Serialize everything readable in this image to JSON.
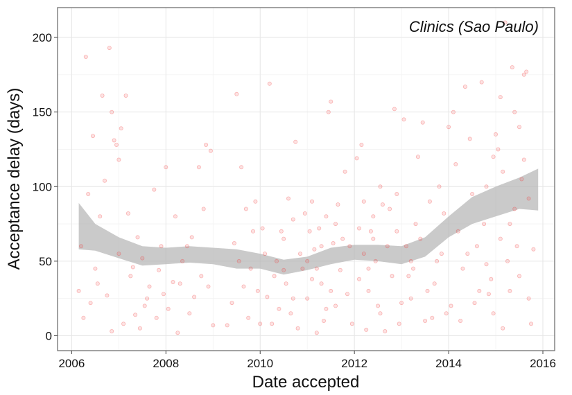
{
  "chart_data": {
    "type": "scatter",
    "title": "Clinics (Sao Paulo)",
    "xlabel": "Date accepted",
    "ylabel": "Acceptance delay (days)",
    "xlim": [
      2005.7,
      2016.25
    ],
    "ylim": [
      -10,
      220
    ],
    "x_ticks": [
      2006,
      2008,
      2010,
      2012,
      2014,
      2016
    ],
    "y_ticks": [
      0,
      50,
      100,
      150,
      200
    ],
    "x_tick_labels": [
      "2006",
      "2008",
      "2010",
      "2012",
      "2014",
      "2016"
    ],
    "y_tick_labels": [
      "0",
      "50",
      "100",
      "150",
      "200"
    ],
    "grid": true,
    "point_color": "#f03b3b",
    "band_color": "#b3b3b3",
    "points": [
      [
        2006.2,
        60
      ],
      [
        2006.3,
        187
      ],
      [
        2006.35,
        95
      ],
      [
        2006.45,
        134
      ],
      [
        2006.5,
        45
      ],
      [
        2006.6,
        80
      ],
      [
        2006.65,
        161
      ],
      [
        2006.7,
        104
      ],
      [
        2006.8,
        193
      ],
      [
        2006.85,
        150
      ],
      [
        2006.9,
        131
      ],
      [
        2006.95,
        128
      ],
      [
        2007.0,
        118
      ],
      [
        2007.05,
        139
      ],
      [
        2007.15,
        161
      ],
      [
        2007.2,
        82
      ],
      [
        2007.3,
        46
      ],
      [
        2007.4,
        66
      ],
      [
        2007.5,
        52
      ],
      [
        2007.6,
        25
      ],
      [
        2007.75,
        98
      ],
      [
        2007.9,
        60
      ],
      [
        2008.0,
        113
      ],
      [
        2008.2,
        80
      ],
      [
        2008.3,
        35
      ],
      [
        2008.45,
        60
      ],
      [
        2008.55,
        66
      ],
      [
        2008.7,
        113
      ],
      [
        2008.8,
        85
      ],
      [
        2008.85,
        128
      ],
      [
        2008.95,
        124
      ],
      [
        2006.15,
        30
      ],
      [
        2006.25,
        12
      ],
      [
        2006.4,
        22
      ],
      [
        2006.55,
        35
      ],
      [
        2006.75,
        27
      ],
      [
        2006.85,
        3
      ],
      [
        2007.0,
        55
      ],
      [
        2007.1,
        8
      ],
      [
        2007.25,
        40
      ],
      [
        2007.35,
        14
      ],
      [
        2007.45,
        5
      ],
      [
        2007.55,
        20
      ],
      [
        2007.65,
        33
      ],
      [
        2007.8,
        12
      ],
      [
        2007.85,
        44
      ],
      [
        2007.95,
        28
      ],
      [
        2008.05,
        18
      ],
      [
        2008.15,
        36
      ],
      [
        2008.25,
        2
      ],
      [
        2008.35,
        50
      ],
      [
        2008.5,
        15
      ],
      [
        2008.6,
        26
      ],
      [
        2008.75,
        40
      ],
      [
        2008.9,
        33
      ],
      [
        2009.0,
        7
      ],
      [
        2009.3,
        7
      ],
      [
        2009.4,
        22
      ],
      [
        2009.45,
        62
      ],
      [
        2009.5,
        162
      ],
      [
        2009.6,
        113
      ],
      [
        2009.7,
        85
      ],
      [
        2009.8,
        45
      ],
      [
        2009.9,
        90
      ],
      [
        2009.95,
        30
      ],
      [
        2010.05,
        72
      ],
      [
        2010.1,
        55
      ],
      [
        2010.2,
        169
      ],
      [
        2010.3,
        40
      ],
      [
        2010.4,
        18
      ],
      [
        2010.5,
        65
      ],
      [
        2010.6,
        92
      ],
      [
        2010.7,
        78
      ],
      [
        2010.75,
        130
      ],
      [
        2010.8,
        5
      ],
      [
        2010.9,
        45
      ],
      [
        2011.0,
        25
      ],
      [
        2011.05,
        70
      ],
      [
        2011.1,
        90
      ],
      [
        2011.15,
        58
      ],
      [
        2011.2,
        2
      ],
      [
        2011.25,
        72
      ],
      [
        2011.3,
        35
      ],
      [
        2011.35,
        10
      ],
      [
        2011.4,
        80
      ],
      [
        2011.45,
        150
      ],
      [
        2011.5,
        157
      ],
      [
        2011.55,
        62
      ],
      [
        2011.6,
        20
      ],
      [
        2011.65,
        88
      ],
      [
        2011.7,
        44
      ],
      [
        2011.8,
        110
      ],
      [
        2011.9,
        60
      ],
      [
        2011.95,
        8
      ],
      [
        2010.0,
        8
      ],
      [
        2010.15,
        26
      ],
      [
        2010.35,
        50
      ],
      [
        2010.45,
        70
      ],
      [
        2010.55,
        35
      ],
      [
        2010.65,
        15
      ],
      [
        2010.85,
        55
      ],
      [
        2010.95,
        82
      ],
      [
        2011.1,
        38
      ],
      [
        2011.3,
        60
      ],
      [
        2011.5,
        30
      ],
      [
        2011.75,
        65
      ],
      [
        2011.85,
        28
      ],
      [
        2009.55,
        50
      ],
      [
        2009.65,
        33
      ],
      [
        2009.75,
        12
      ],
      [
        2009.85,
        70
      ],
      [
        2010.25,
        8
      ],
      [
        2010.5,
        44
      ],
      [
        2010.7,
        25
      ],
      [
        2011.0,
        50
      ],
      [
        2011.2,
        45
      ],
      [
        2011.4,
        18
      ],
      [
        2011.6,
        75
      ],
      [
        2012.05,
        119
      ],
      [
        2012.15,
        128
      ],
      [
        2012.2,
        90
      ],
      [
        2012.25,
        4
      ],
      [
        2012.3,
        45
      ],
      [
        2012.35,
        70
      ],
      [
        2012.4,
        65
      ],
      [
        2012.5,
        20
      ],
      [
        2012.55,
        100
      ],
      [
        2012.6,
        88
      ],
      [
        2012.65,
        3
      ],
      [
        2012.75,
        85
      ],
      [
        2012.85,
        152
      ],
      [
        2012.95,
        8
      ],
      [
        2013.05,
        145
      ],
      [
        2013.1,
        60
      ],
      [
        2013.15,
        40
      ],
      [
        2013.2,
        25
      ],
      [
        2013.3,
        75
      ],
      [
        2013.35,
        120
      ],
      [
        2013.45,
        143
      ],
      [
        2013.5,
        10
      ],
      [
        2013.6,
        90
      ],
      [
        2013.7,
        35
      ],
      [
        2013.8,
        100
      ],
      [
        2013.85,
        55
      ],
      [
        2013.9,
        82
      ],
      [
        2013.95,
        15
      ],
      [
        2012.1,
        38
      ],
      [
        2012.2,
        55
      ],
      [
        2012.3,
        30
      ],
      [
        2012.45,
        50
      ],
      [
        2012.55,
        15
      ],
      [
        2012.7,
        60
      ],
      [
        2012.8,
        40
      ],
      [
        2012.9,
        70
      ],
      [
        2013.0,
        22
      ],
      [
        2013.25,
        45
      ],
      [
        2013.4,
        65
      ],
      [
        2013.55,
        30
      ],
      [
        2013.65,
        12
      ],
      [
        2013.75,
        50
      ],
      [
        2012.1,
        72
      ],
      [
        2012.4,
        80
      ],
      [
        2012.9,
        95
      ],
      [
        2013.2,
        50
      ],
      [
        2014.0,
        140
      ],
      [
        2014.1,
        150
      ],
      [
        2014.15,
        115
      ],
      [
        2014.2,
        70
      ],
      [
        2014.3,
        45
      ],
      [
        2014.35,
        167
      ],
      [
        2014.45,
        132
      ],
      [
        2014.5,
        95
      ],
      [
        2014.6,
        60
      ],
      [
        2014.65,
        30
      ],
      [
        2014.7,
        170
      ],
      [
        2014.75,
        75
      ],
      [
        2014.8,
        48
      ],
      [
        2014.85,
        28
      ],
      [
        2014.9,
        38
      ],
      [
        2014.95,
        120
      ],
      [
        2015.0,
        135
      ],
      [
        2015.05,
        125
      ],
      [
        2015.1,
        160
      ],
      [
        2015.15,
        110
      ],
      [
        2015.2,
        210
      ],
      [
        2015.25,
        50
      ],
      [
        2015.3,
        30
      ],
      [
        2015.35,
        180
      ],
      [
        2015.4,
        85
      ],
      [
        2015.45,
        60
      ],
      [
        2015.5,
        140
      ],
      [
        2015.55,
        105
      ],
      [
        2015.6,
        175
      ],
      [
        2015.65,
        177
      ],
      [
        2015.7,
        92
      ],
      [
        2015.75,
        8
      ],
      [
        2015.8,
        58
      ],
      [
        2014.05,
        20
      ],
      [
        2014.25,
        10
      ],
      [
        2014.4,
        55
      ],
      [
        2014.55,
        22
      ],
      [
        2014.95,
        15
      ],
      [
        2015.15,
        5
      ],
      [
        2015.3,
        75
      ],
      [
        2015.5,
        40
      ],
      [
        2015.7,
        25
      ],
      [
        2015.1,
        65
      ],
      [
        2014.8,
        100
      ],
      [
        2015.4,
        150
      ],
      [
        2015.6,
        118
      ]
    ],
    "smooth": [
      {
        "x": 2006.15,
        "lo": 58,
        "hi": 89
      },
      {
        "x": 2006.5,
        "lo": 57,
        "hi": 75
      },
      {
        "x": 2007.0,
        "lo": 52,
        "hi": 66
      },
      {
        "x": 2007.5,
        "lo": 47,
        "hi": 60
      },
      {
        "x": 2008.0,
        "lo": 48,
        "hi": 59
      },
      {
        "x": 2008.5,
        "lo": 49,
        "hi": 60
      },
      {
        "x": 2009.0,
        "lo": 48,
        "hi": 59
      },
      {
        "x": 2009.5,
        "lo": 45,
        "hi": 58
      },
      {
        "x": 2010.0,
        "lo": 45,
        "hi": 55
      },
      {
        "x": 2010.5,
        "lo": 41,
        "hi": 51
      },
      {
        "x": 2011.0,
        "lo": 44,
        "hi": 53
      },
      {
        "x": 2011.5,
        "lo": 48,
        "hi": 59
      },
      {
        "x": 2012.0,
        "lo": 51,
        "hi": 61
      },
      {
        "x": 2012.5,
        "lo": 50,
        "hi": 61
      },
      {
        "x": 2013.0,
        "lo": 48,
        "hi": 60
      },
      {
        "x": 2013.5,
        "lo": 53,
        "hi": 66
      },
      {
        "x": 2014.0,
        "lo": 66,
        "hi": 80
      },
      {
        "x": 2014.5,
        "lo": 75,
        "hi": 93
      },
      {
        "x": 2015.0,
        "lo": 80,
        "hi": 100
      },
      {
        "x": 2015.5,
        "lo": 85,
        "hi": 106
      },
      {
        "x": 2015.9,
        "lo": 84,
        "hi": 112
      }
    ]
  }
}
